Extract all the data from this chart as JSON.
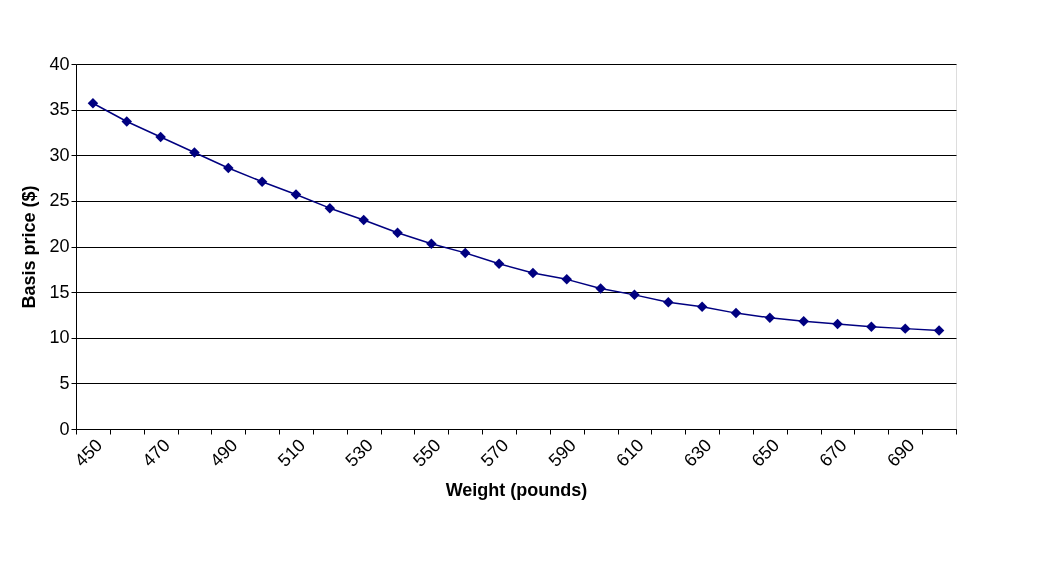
{
  "chart_data": {
    "type": "line",
    "xlabel": "Weight (pounds)",
    "ylabel": "Basis price ($)",
    "categories": [
      "450",
      null,
      "470",
      null,
      "490",
      null,
      "510",
      null,
      "530",
      null,
      "550",
      null,
      "570",
      null,
      "590",
      null,
      "610",
      null,
      "630",
      null,
      "650",
      null,
      "670",
      null,
      "690",
      null
    ],
    "series": [
      {
        "color": "#000080",
        "values": [
          35.7,
          33.7,
          32.0,
          30.3,
          28.6,
          27.1,
          25.7,
          24.2,
          22.9,
          21.5,
          20.3,
          19.3,
          18.1,
          17.1,
          16.4,
          15.4,
          14.7,
          13.9,
          13.4,
          12.7,
          12.2,
          11.8,
          11.5,
          11.2,
          11.0,
          10.8
        ]
      }
    ],
    "ylim": [
      0,
      40
    ],
    "yticks": [
      0,
      5,
      10,
      15,
      20,
      25,
      30,
      35,
      40
    ],
    "grid": "y",
    "legend": false,
    "marker": "diamond",
    "line_style": "solid"
  }
}
